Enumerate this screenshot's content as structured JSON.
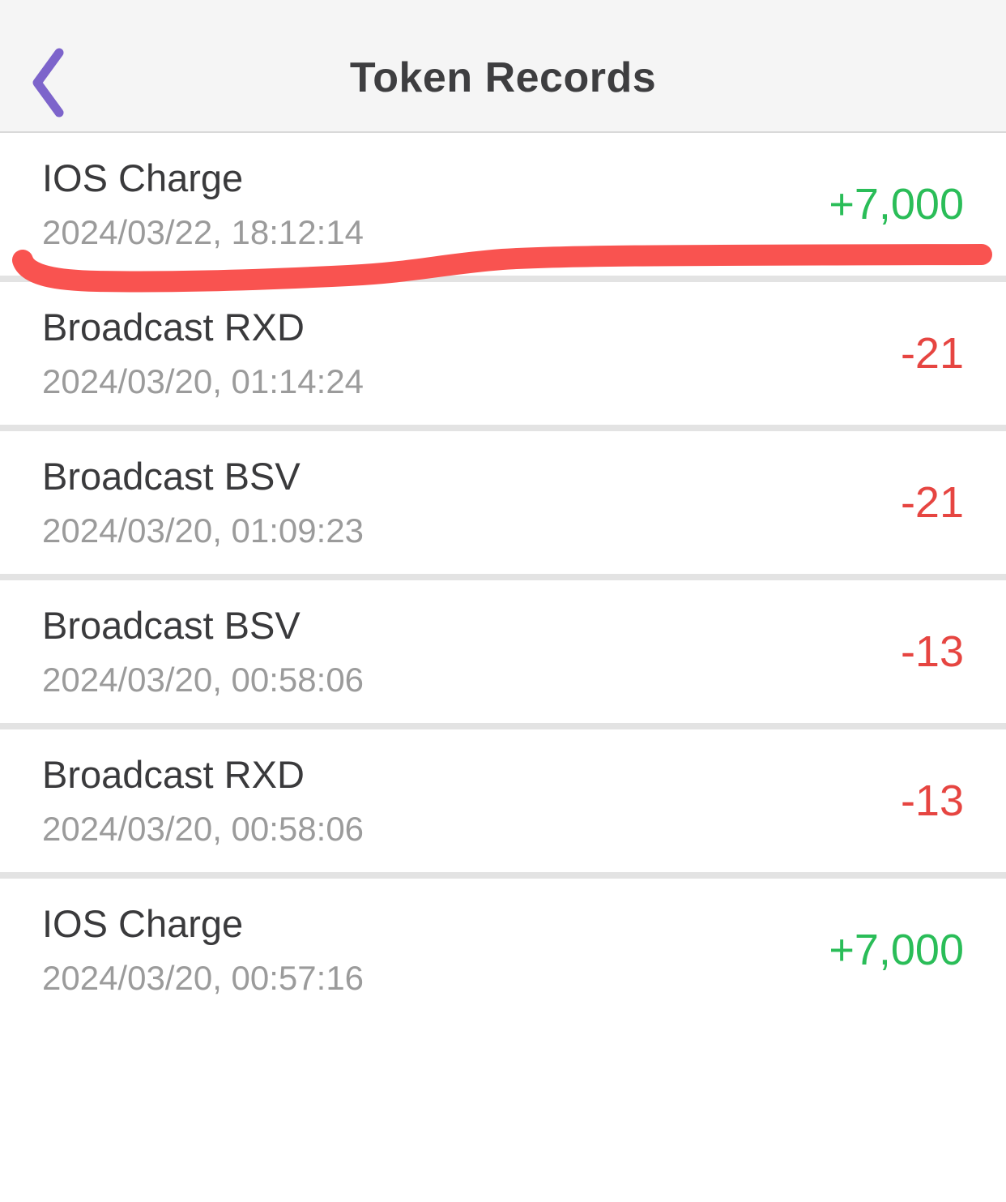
{
  "header": {
    "title": "Token Records",
    "back_icon": "chevron-left"
  },
  "records": [
    {
      "title": "IOS Charge",
      "datetime": "2024/03/22, 18:12:14",
      "amount": "+7,000",
      "direction": "positive",
      "annotated": true
    },
    {
      "title": "Broadcast RXD",
      "datetime": "2024/03/20, 01:14:24",
      "amount": "-21",
      "direction": "negative",
      "annotated": false
    },
    {
      "title": "Broadcast BSV",
      "datetime": "2024/03/20, 01:09:23",
      "amount": "-21",
      "direction": "negative",
      "annotated": false
    },
    {
      "title": "Broadcast BSV",
      "datetime": "2024/03/20, 00:58:06",
      "amount": "-13",
      "direction": "negative",
      "annotated": false
    },
    {
      "title": "Broadcast RXD",
      "datetime": "2024/03/20, 00:58:06",
      "amount": "-13",
      "direction": "negative",
      "annotated": false
    },
    {
      "title": "IOS Charge",
      "datetime": "2024/03/20, 00:57:16",
      "amount": "+7,000",
      "direction": "positive",
      "annotated": false
    }
  ],
  "colors": {
    "positive_green": "#2abd58",
    "negative_red": "#e64541",
    "accent_purple": "#7d64cb",
    "marker_red": "#f95350"
  },
  "annotation": {
    "type": "hand-drawn-red-underline",
    "record_index": 0
  }
}
